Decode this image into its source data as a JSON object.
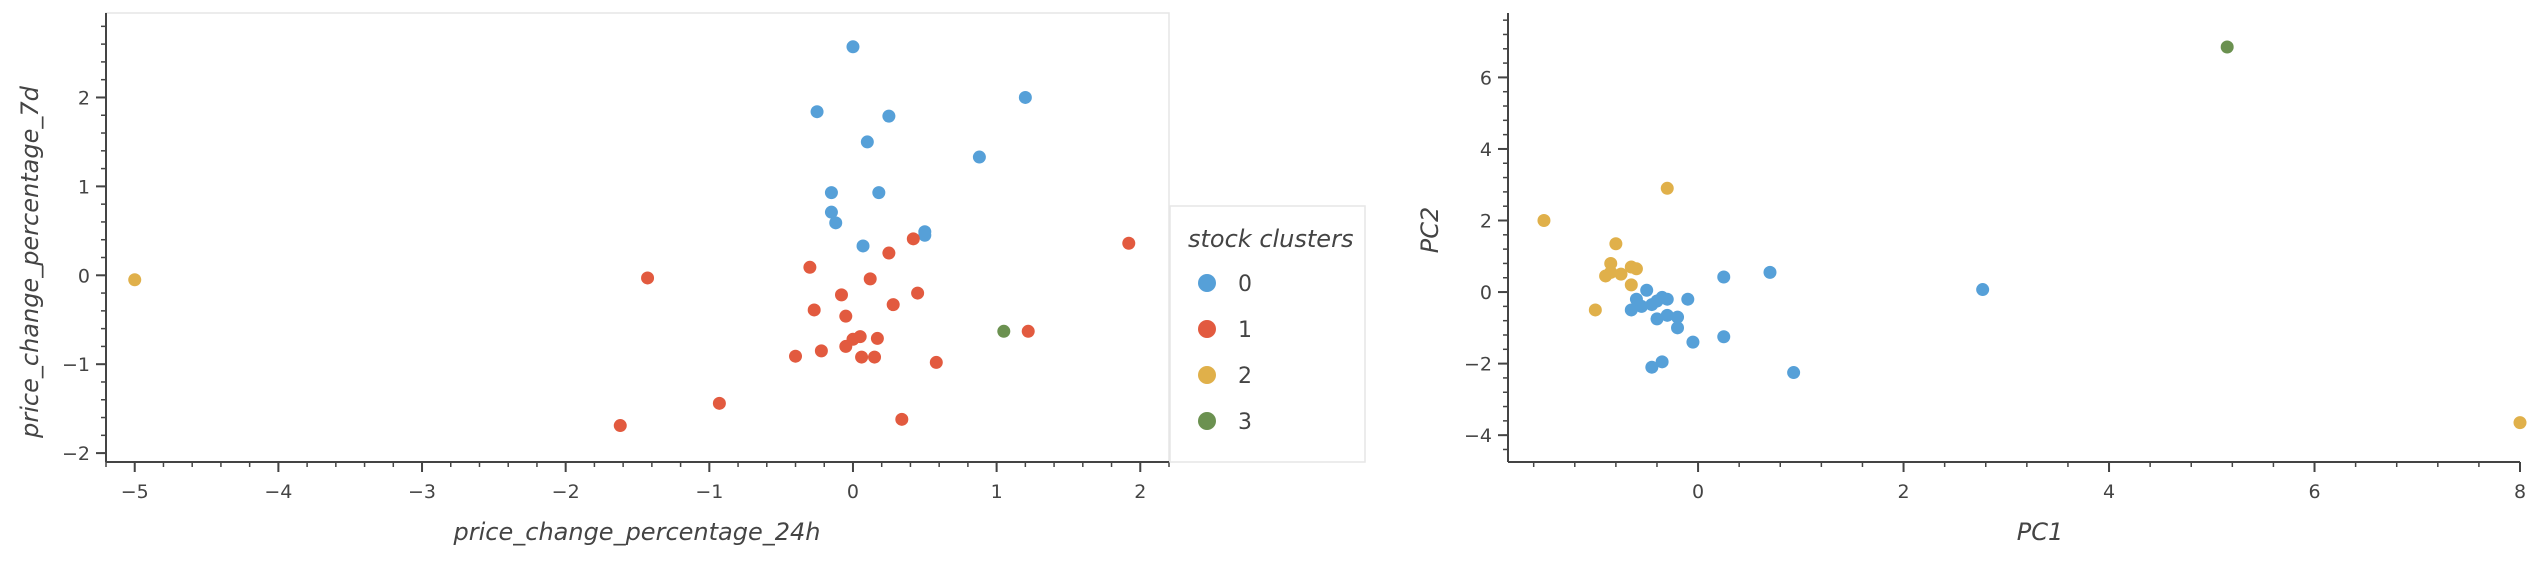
{
  "legend": {
    "title": "stock clusters",
    "entries": [
      {
        "label": "0",
        "color": "#56a0d8"
      },
      {
        "label": "1",
        "color": "#e25a3f"
      },
      {
        "label": "2",
        "color": "#e0b04a"
      },
      {
        "label": "3",
        "color": "#6b9150"
      }
    ]
  },
  "chart_data": [
    {
      "type": "scatter",
      "title": "",
      "xlabel": "price_change_percentage_24h",
      "ylabel": "price_change_percentage_7d",
      "xlim": [
        -5.2,
        2.2
      ],
      "ylim": [
        -2.1,
        2.95
      ],
      "xticks": [
        -5,
        -4,
        -3,
        -2,
        -1,
        0,
        1,
        2
      ],
      "yticks": [
        -2,
        -1,
        0,
        1,
        2
      ],
      "grid": false,
      "legend_position": "right",
      "series": [
        {
          "name": "0",
          "color": "#56a0d8",
          "points": [
            [
              0.0,
              2.57
            ],
            [
              -0.25,
              1.84
            ],
            [
              0.25,
              1.79
            ],
            [
              1.2,
              2.0
            ],
            [
              0.1,
              1.5
            ],
            [
              0.88,
              1.33
            ],
            [
              -0.15,
              0.93
            ],
            [
              0.18,
              0.93
            ],
            [
              -0.15,
              0.71
            ],
            [
              -0.12,
              0.59
            ],
            [
              0.5,
              0.49
            ],
            [
              0.5,
              0.45
            ],
            [
              0.07,
              0.33
            ]
          ]
        },
        {
          "name": "1",
          "color": "#e25a3f",
          "points": [
            [
              1.92,
              0.36
            ],
            [
              -1.43,
              -0.03
            ],
            [
              -0.3,
              0.09
            ],
            [
              0.25,
              0.25
            ],
            [
              0.42,
              0.41
            ],
            [
              0.12,
              -0.04
            ],
            [
              -0.08,
              -0.22
            ],
            [
              0.45,
              -0.2
            ],
            [
              -0.27,
              -0.39
            ],
            [
              0.28,
              -0.33
            ],
            [
              -0.05,
              -0.46
            ],
            [
              0.0,
              -0.72
            ],
            [
              0.05,
              -0.69
            ],
            [
              0.17,
              -0.71
            ],
            [
              -0.22,
              -0.85
            ],
            [
              -0.4,
              -0.91
            ],
            [
              -0.05,
              -0.8
            ],
            [
              0.06,
              -0.92
            ],
            [
              0.15,
              -0.92
            ],
            [
              0.58,
              -0.98
            ],
            [
              1.22,
              -0.63
            ],
            [
              -0.93,
              -1.44
            ],
            [
              -1.62,
              -1.69
            ],
            [
              0.34,
              -1.62
            ]
          ]
        },
        {
          "name": "2",
          "color": "#e0b04a",
          "points": [
            [
              -5.0,
              -0.05
            ]
          ]
        },
        {
          "name": "3",
          "color": "#6b9150",
          "points": [
            [
              1.05,
              -0.63
            ]
          ]
        }
      ]
    },
    {
      "type": "scatter",
      "title": "",
      "xlabel": "PC1",
      "ylabel": "PC2",
      "xlim": [
        -1.85,
        8.0
      ],
      "ylim": [
        -4.75,
        7.8
      ],
      "xticks": [
        0,
        2,
        4,
        6,
        8
      ],
      "yticks": [
        -4,
        -2,
        0,
        2,
        4,
        6
      ],
      "grid": false,
      "series": [
        {
          "name": "0",
          "color": "#56a0d8",
          "points": [
            [
              2.77,
              0.07
            ],
            [
              0.7,
              0.55
            ],
            [
              0.25,
              0.42
            ],
            [
              -0.1,
              -0.2
            ],
            [
              -0.3,
              -0.2
            ],
            [
              -0.35,
              -0.15
            ],
            [
              -0.4,
              -0.25
            ],
            [
              -0.45,
              -0.35
            ],
            [
              -0.55,
              -0.4
            ],
            [
              -0.65,
              -0.5
            ],
            [
              -0.6,
              -0.2
            ],
            [
              -0.2,
              -0.7
            ],
            [
              -0.3,
              -0.65
            ],
            [
              -0.4,
              -0.75
            ],
            [
              -0.2,
              -1.0
            ],
            [
              -0.05,
              -1.4
            ],
            [
              0.25,
              -1.25
            ],
            [
              -0.35,
              -1.95
            ],
            [
              -0.45,
              -2.1
            ],
            [
              0.93,
              -2.25
            ],
            [
              -0.5,
              0.05
            ]
          ]
        },
        {
          "name": "1",
          "color": "#e25a3f",
          "points": []
        },
        {
          "name": "2",
          "color": "#e0b04a",
          "points": [
            [
              -1.5,
              2.0
            ],
            [
              -0.3,
              2.9
            ],
            [
              -0.8,
              1.35
            ],
            [
              -0.85,
              0.8
            ],
            [
              -0.65,
              0.7
            ],
            [
              -0.6,
              0.65
            ],
            [
              -0.75,
              0.5
            ],
            [
              -0.9,
              0.45
            ],
            [
              -0.85,
              0.55
            ],
            [
              -0.65,
              0.2
            ],
            [
              -1.0,
              -0.5
            ],
            [
              8.0,
              -3.65
            ]
          ]
        },
        {
          "name": "3",
          "color": "#6b9150",
          "points": [
            [
              5.15,
              6.85
            ]
          ]
        }
      ]
    }
  ]
}
